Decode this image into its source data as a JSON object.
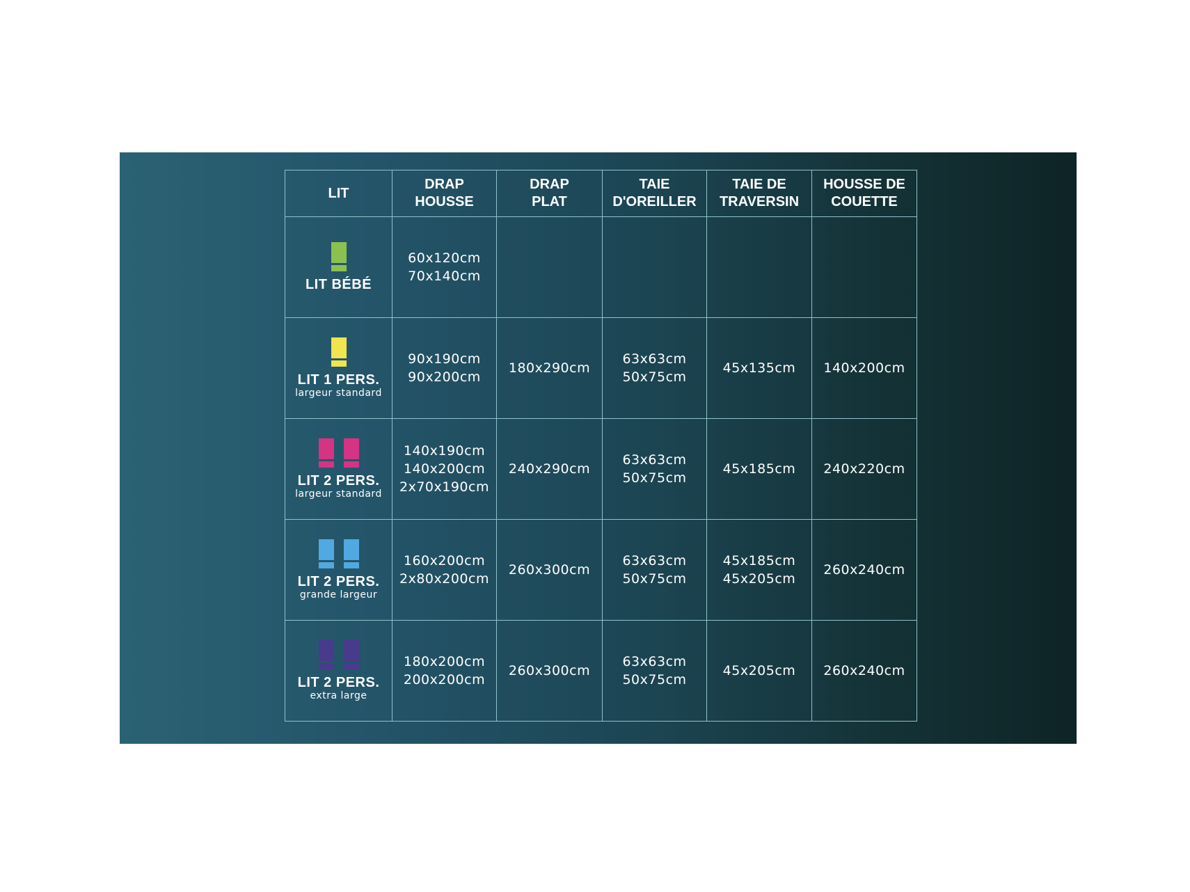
{
  "headers": [
    "LIT",
    "DRAP HOUSSE",
    "DRAP PLAT",
    "TAIE D'OREILLER",
    "TAIE DE TRAVERSIN",
    "HOUSSE DE COUETTE"
  ],
  "headers_lines": [
    [
      "LIT"
    ],
    [
      "DRAP",
      "HOUSSE"
    ],
    [
      "DRAP",
      "PLAT"
    ],
    [
      "TAIE",
      "D'OREILLER"
    ],
    [
      "TAIE DE",
      "TRAVERSIN"
    ],
    [
      "HOUSSE DE",
      "COUETTE"
    ]
  ],
  "rows": [
    {
      "name": "LIT BÉBÉ",
      "sub": "",
      "icon_color": "#8cc152",
      "icon_count": 1,
      "cells": [
        [
          "60x120cm",
          "70x140cm"
        ],
        [],
        [],
        [],
        []
      ]
    },
    {
      "name": "LIT 1 PERS.",
      "sub": "largeur standard",
      "icon_color": "#f2e44f",
      "icon_count": 1,
      "cells": [
        [
          "90x190cm",
          "90x200cm"
        ],
        [
          "180x290cm"
        ],
        [
          "63x63cm",
          "50x75cm"
        ],
        [
          "45x135cm"
        ],
        [
          "140x200cm"
        ]
      ]
    },
    {
      "name": "LIT 2 PERS.",
      "sub": "largeur standard",
      "icon_color": "#d63384",
      "icon_count": 2,
      "cells": [
        [
          "140x190cm",
          "140x200cm",
          "2x70x190cm"
        ],
        [
          "240x290cm"
        ],
        [
          "63x63cm",
          "50x75cm"
        ],
        [
          "45x185cm"
        ],
        [
          "240x220cm"
        ]
      ]
    },
    {
      "name": "LIT 2 PERS.",
      "sub": "grande largeur",
      "icon_color": "#52a8e0",
      "icon_count": 2,
      "cells": [
        [
          "160x200cm",
          "2x80x200cm"
        ],
        [
          "260x300cm"
        ],
        [
          "63x63cm",
          "50x75cm"
        ],
        [
          "45x185cm",
          "45x205cm"
        ],
        [
          "260x240cm"
        ]
      ]
    },
    {
      "name": "LIT 2 PERS.",
      "sub": "extra large",
      "icon_color": "#4a3a8c",
      "icon_count": 2,
      "cells": [
        [
          "180x200cm",
          "200x200cm"
        ],
        [
          "260x300cm"
        ],
        [
          "63x63cm",
          "50x75cm"
        ],
        [
          "45x205cm"
        ],
        [
          "260x240cm"
        ]
      ]
    }
  ]
}
